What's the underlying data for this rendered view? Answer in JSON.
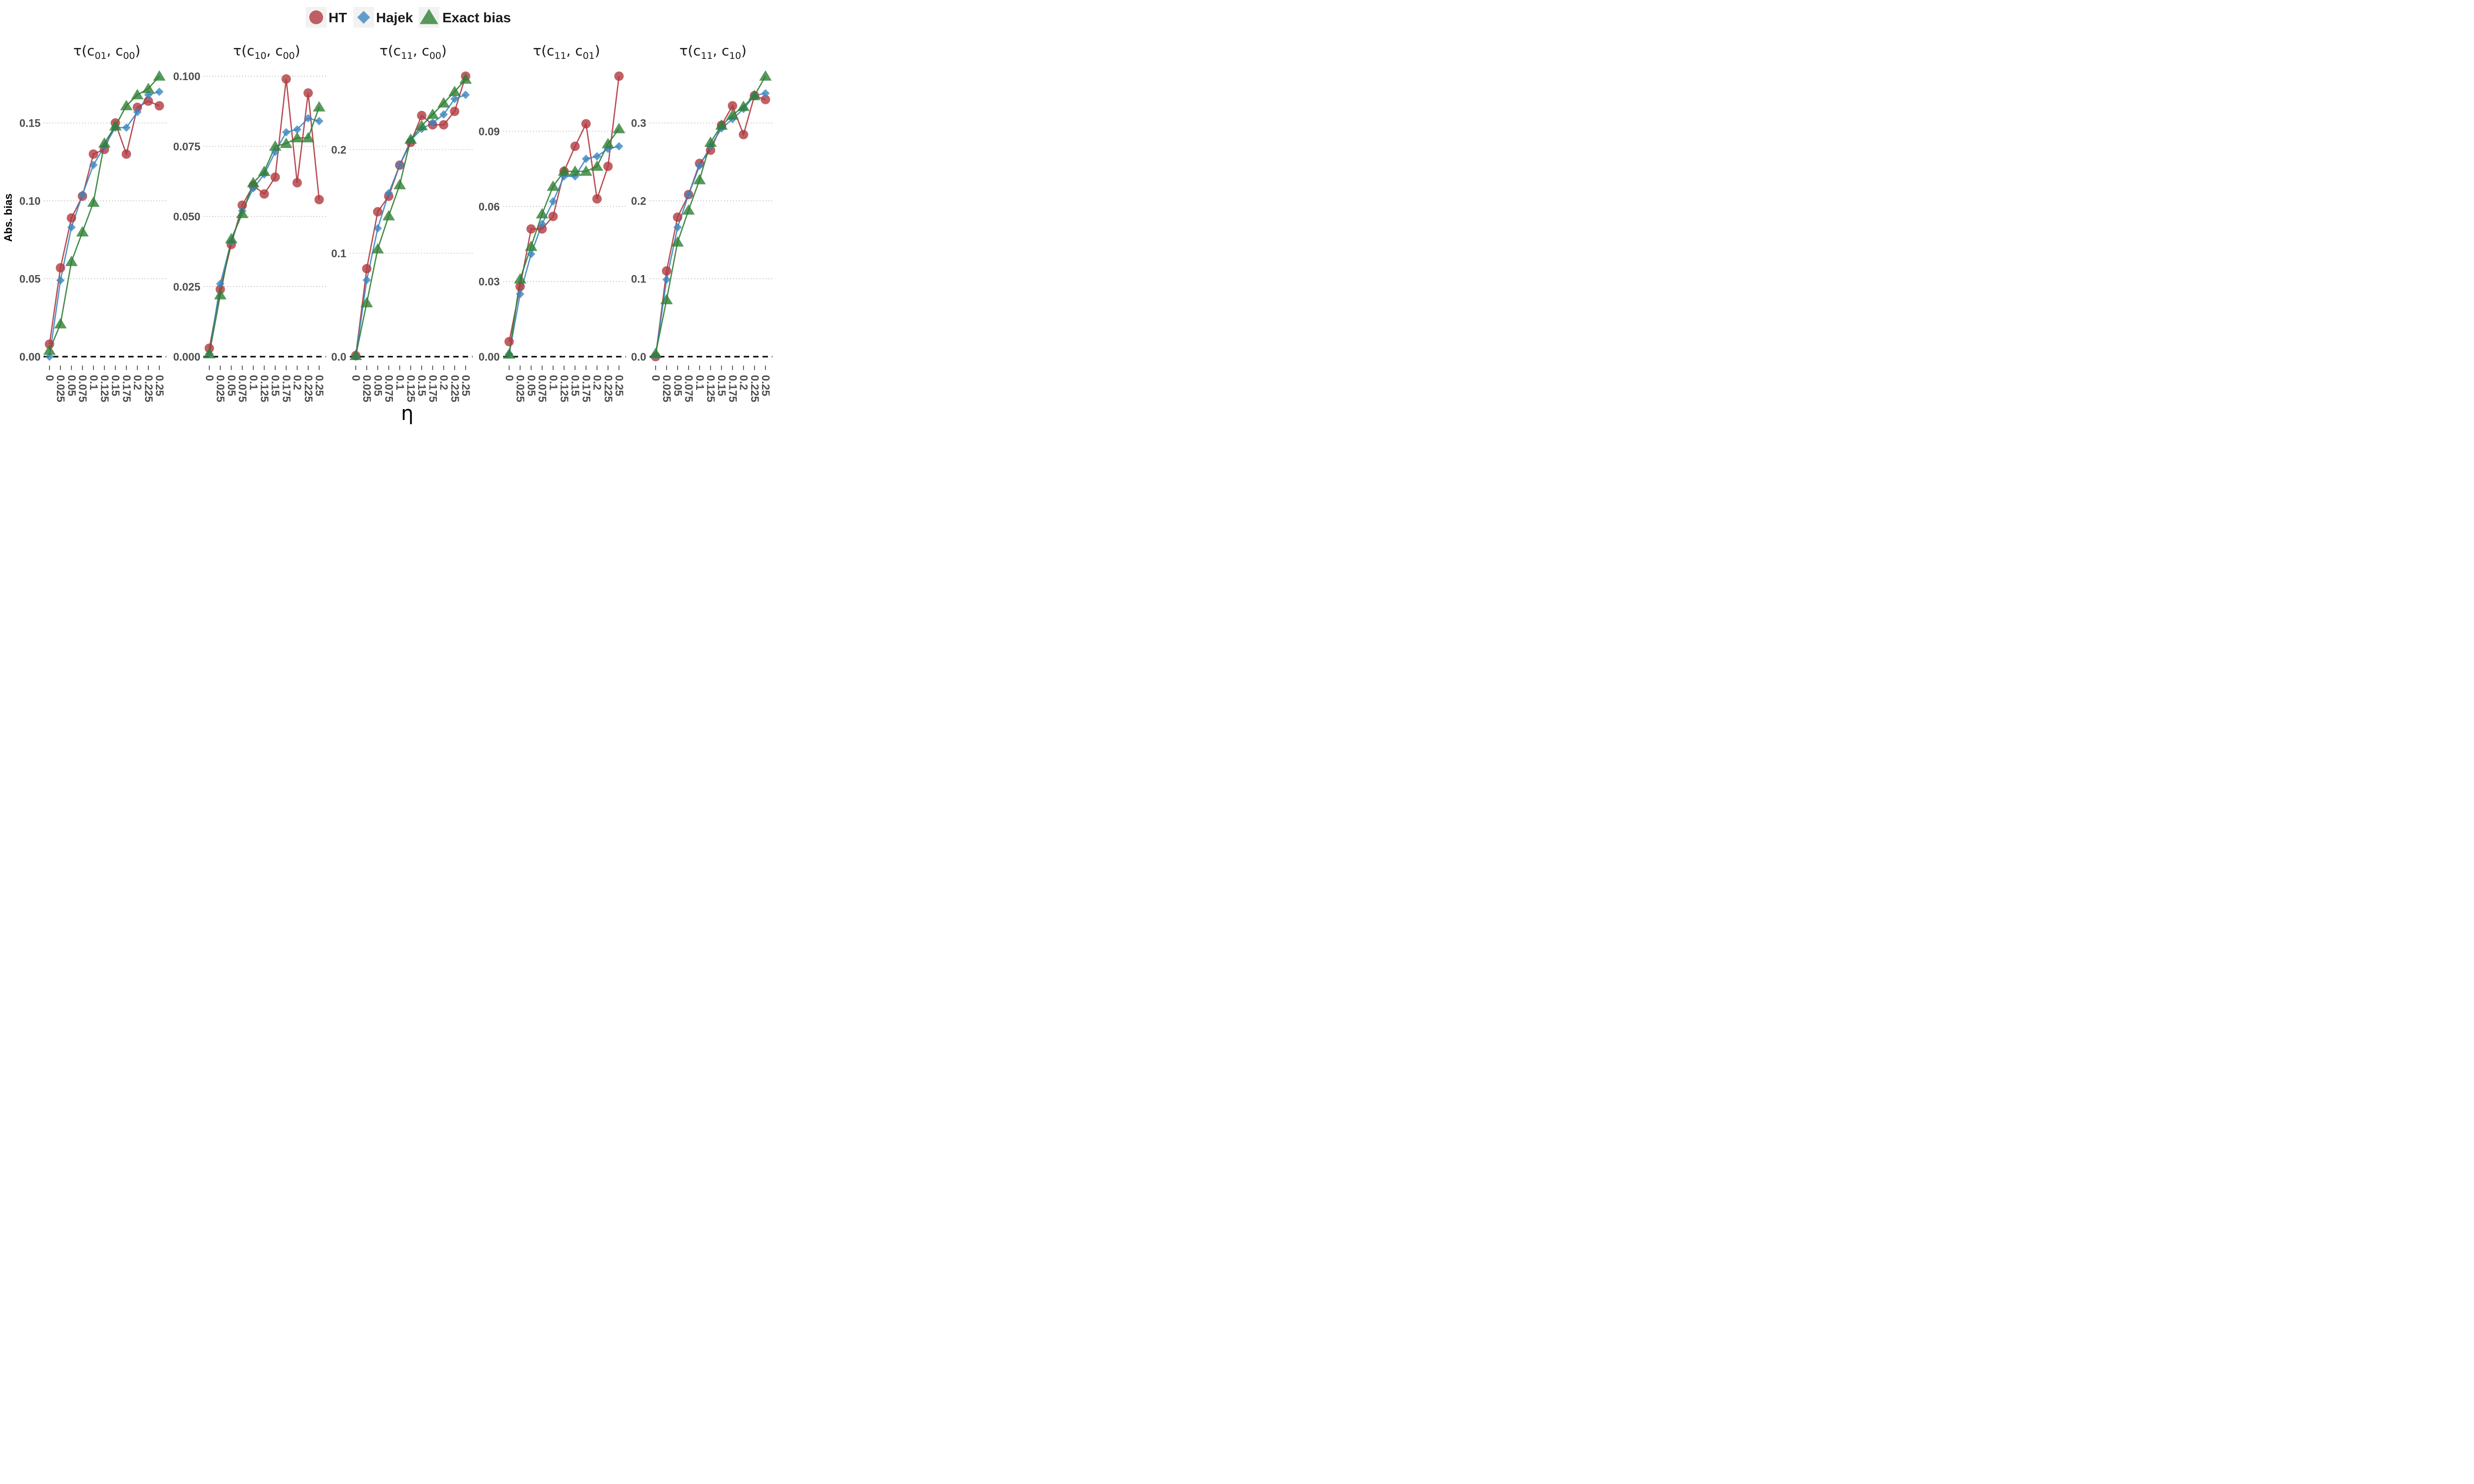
{
  "legend": {
    "items": [
      {
        "label": "HT",
        "color": "#b0393f",
        "shape": "circle"
      },
      {
        "label": "Hajek",
        "color": "#3b86c0",
        "shape": "diamond"
      },
      {
        "label": "Exact bias",
        "color": "#2e8033",
        "shape": "triangle"
      }
    ]
  },
  "axis": {
    "ylabel": "Abs. bias",
    "xlabel": "η"
  },
  "chart_data": [
    {
      "type": "line",
      "title": "τ(c01, c00)",
      "title_main": "c01",
      "title_ref": "c00",
      "x": [
        0,
        0.025,
        0.05,
        0.075,
        0.1,
        0.125,
        0.15,
        0.175,
        0.2,
        0.225,
        0.25
      ],
      "xtick_labels": [
        "0",
        "0.025",
        "0.05",
        "0.075",
        "0.1",
        "0.125",
        "0.15",
        "0.175",
        "0.2",
        "0.225",
        "0.25"
      ],
      "ylim": [
        0,
        0.18
      ],
      "yticks": [
        0,
        0.05,
        0.1,
        0.15
      ],
      "ytick_labels": [
        "0.00",
        "0.05",
        "0.10",
        "0.15"
      ],
      "series": [
        {
          "name": "HT",
          "values": [
            0.008,
            0.057,
            0.089,
            0.103,
            0.13,
            0.133,
            0.15,
            0.13,
            0.16,
            0.164,
            0.161
          ]
        },
        {
          "name": "Hajek",
          "values": [
            0.0,
            0.049,
            0.083,
            0.104,
            0.123,
            0.135,
            0.147,
            0.147,
            0.157,
            0.168,
            0.17
          ]
        },
        {
          "name": "Exact bias",
          "values": [
            0.004,
            0.021,
            0.061,
            0.08,
            0.099,
            0.137,
            0.148,
            0.161,
            0.168,
            0.172,
            0.18
          ]
        }
      ]
    },
    {
      "type": "line",
      "title": "τ(c10, c00)",
      "title_main": "c10",
      "title_ref": "c00",
      "x": [
        0,
        0.025,
        0.05,
        0.075,
        0.1,
        0.125,
        0.15,
        0.175,
        0.2,
        0.225,
        0.25
      ],
      "xtick_labels": [
        "0",
        "0.025",
        "0.05",
        "0.075",
        "0.1",
        "0.125",
        "0.15",
        "0.175",
        "0.2",
        "0.225",
        "0.25"
      ],
      "ylim": [
        0,
        0.1
      ],
      "yticks": [
        0,
        0.025,
        0.05,
        0.075,
        0.1
      ],
      "ytick_labels": [
        "0.000",
        "0.025",
        "0.050",
        "0.075",
        "0.100"
      ],
      "series": [
        {
          "name": "HT",
          "values": [
            0.003,
            0.024,
            0.04,
            0.054,
            0.061,
            0.058,
            0.064,
            0.099,
            0.062,
            0.094,
            0.056
          ]
        },
        {
          "name": "Hajek",
          "values": [
            0.001,
            0.026,
            0.041,
            0.052,
            0.06,
            0.065,
            0.073,
            0.08,
            0.081,
            0.085,
            0.084
          ]
        },
        {
          "name": "Exact bias",
          "values": [
            0.001,
            0.022,
            0.042,
            0.051,
            0.062,
            0.066,
            0.075,
            0.076,
            0.078,
            0.078,
            0.089
          ]
        }
      ]
    },
    {
      "type": "line",
      "title": "τ(c11, c00)",
      "title_main": "c11",
      "title_ref": "c00",
      "x": [
        0,
        0.025,
        0.05,
        0.075,
        0.1,
        0.125,
        0.15,
        0.175,
        0.2,
        0.225,
        0.25
      ],
      "xtick_labels": [
        "0",
        "0.025",
        "0.05",
        "0.075",
        "0.1",
        "0.125",
        "0.15",
        "0.175",
        "0.2",
        "0.225",
        "0.25"
      ],
      "ylim": [
        0,
        0.271
      ],
      "yticks": [
        0,
        0.1,
        0.2
      ],
      "ytick_labels": [
        "0.0",
        "0.1",
        "0.2"
      ],
      "series": [
        {
          "name": "HT",
          "values": [
            0.001,
            0.085,
            0.14,
            0.155,
            0.185,
            0.207,
            0.233,
            0.224,
            0.224,
            0.237,
            0.271
          ]
        },
        {
          "name": "Hajek",
          "values": [
            0.0,
            0.074,
            0.124,
            0.158,
            0.185,
            0.209,
            0.22,
            0.226,
            0.234,
            0.249,
            0.253
          ]
        },
        {
          "name": "Exact bias",
          "values": [
            0.001,
            0.052,
            0.104,
            0.136,
            0.166,
            0.21,
            0.223,
            0.234,
            0.245,
            0.256,
            0.268
          ]
        }
      ]
    },
    {
      "type": "line",
      "title": "τ(c11, c01)",
      "title_main": "c11",
      "title_ref": "c01",
      "x": [
        0,
        0.025,
        0.05,
        0.075,
        0.1,
        0.125,
        0.15,
        0.175,
        0.2,
        0.225,
        0.25
      ],
      "xtick_labels": [
        "0",
        "0.025",
        "0.05",
        "0.075",
        "0.1",
        "0.125",
        "0.15",
        "0.175",
        "0.2",
        "0.225",
        "0.25"
      ],
      "ylim": [
        0,
        0.112
      ],
      "yticks": [
        0,
        0.03,
        0.06,
        0.09
      ],
      "ytick_labels": [
        "0.00",
        "0.03",
        "0.06",
        "0.09"
      ],
      "series": [
        {
          "name": "HT",
          "values": [
            0.006,
            0.028,
            0.051,
            0.051,
            0.056,
            0.074,
            0.084,
            0.093,
            0.063,
            0.076,
            0.112
          ]
        },
        {
          "name": "Hajek",
          "values": [
            0.001,
            0.025,
            0.041,
            0.053,
            0.062,
            0.072,
            0.072,
            0.079,
            0.08,
            0.083,
            0.084
          ]
        },
        {
          "name": "Exact bias",
          "values": [
            0.001,
            0.031,
            0.044,
            0.057,
            0.068,
            0.074,
            0.074,
            0.074,
            0.076,
            0.085,
            0.091
          ]
        }
      ]
    },
    {
      "type": "line",
      "title": "τ(c11, c10)",
      "title_main": "c11",
      "title_ref": "c10",
      "x": [
        0,
        0.025,
        0.05,
        0.075,
        0.1,
        0.125,
        0.15,
        0.175,
        0.2,
        0.225,
        0.25
      ],
      "xtick_labels": [
        "0",
        "0.025",
        "0.05",
        "0.075",
        "0.1",
        "0.125",
        "0.15",
        "0.175",
        "0.2",
        "0.225",
        "0.25"
      ],
      "ylim": [
        0,
        0.36
      ],
      "yticks": [
        0,
        0.1,
        0.2,
        0.3
      ],
      "ytick_labels": [
        "0.0",
        "0.1",
        "0.2",
        "0.3"
      ],
      "series": [
        {
          "name": "HT",
          "values": [
            0.0,
            0.11,
            0.179,
            0.208,
            0.248,
            0.265,
            0.297,
            0.322,
            0.285,
            0.335,
            0.33
          ]
        },
        {
          "name": "Hajek",
          "values": [
            0.001,
            0.099,
            0.166,
            0.208,
            0.245,
            0.27,
            0.293,
            0.305,
            0.318,
            0.335,
            0.338
          ]
        },
        {
          "name": "Exact bias",
          "values": [
            0.004,
            0.073,
            0.147,
            0.188,
            0.227,
            0.275,
            0.297,
            0.31,
            0.321,
            0.335,
            0.36
          ]
        }
      ]
    }
  ]
}
